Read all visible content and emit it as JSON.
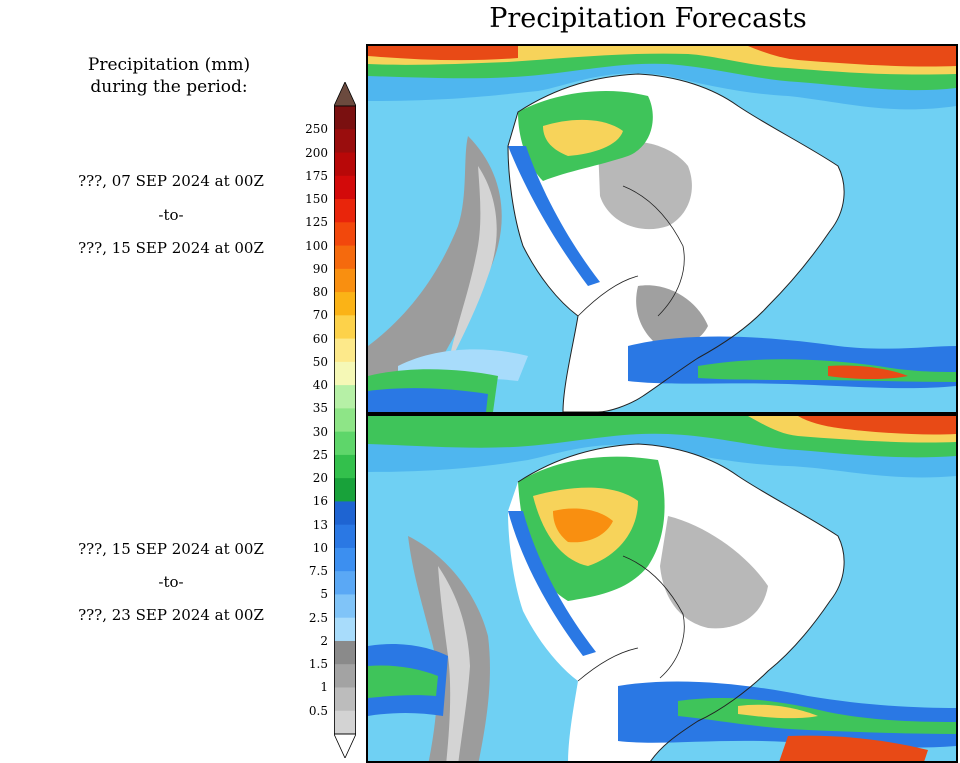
{
  "title": "Precipitation Forecasts",
  "legend": {
    "header_line1": "Precipitation (mm)",
    "header_line2": "during the period:"
  },
  "periods": [
    {
      "start": "???, 07 SEP 2024 at 00Z",
      "sep": "-to-",
      "end": "???, 15 SEP 2024 at 00Z"
    },
    {
      "start": "???, 15 SEP 2024 at 00Z",
      "sep": "-to-",
      "end": "???, 23 SEP 2024 at 00Z"
    }
  ],
  "colorbar": {
    "labels": [
      "250",
      "200",
      "175",
      "150",
      "125",
      "100",
      "90",
      "80",
      "70",
      "60",
      "50",
      "40",
      "35",
      "30",
      "25",
      "20",
      "16",
      "13",
      "10",
      "7.5",
      "5",
      "2.5",
      "2",
      "1.5",
      "1",
      "0.5"
    ],
    "colors": [
      "#7a1010",
      "#9a0d0d",
      "#b80808",
      "#d30a0a",
      "#e9250b",
      "#f2480c",
      "#f56a0d",
      "#f98f10",
      "#fbb316",
      "#fdd24a",
      "#fde98a",
      "#f5f8b6",
      "#b6f0a6",
      "#8ee587",
      "#5ed66a",
      "#33c04c",
      "#18a23a",
      "#1e64d2",
      "#2a78e4",
      "#3c8ff0",
      "#5aa8f5",
      "#80c4f8",
      "#a8dcfb",
      "#8a8a8a",
      "#a3a3a3",
      "#bcbcbc",
      "#d3d3d3"
    ],
    "top_color": "#6b4a3e",
    "bottom_color": "#ffffff"
  }
}
